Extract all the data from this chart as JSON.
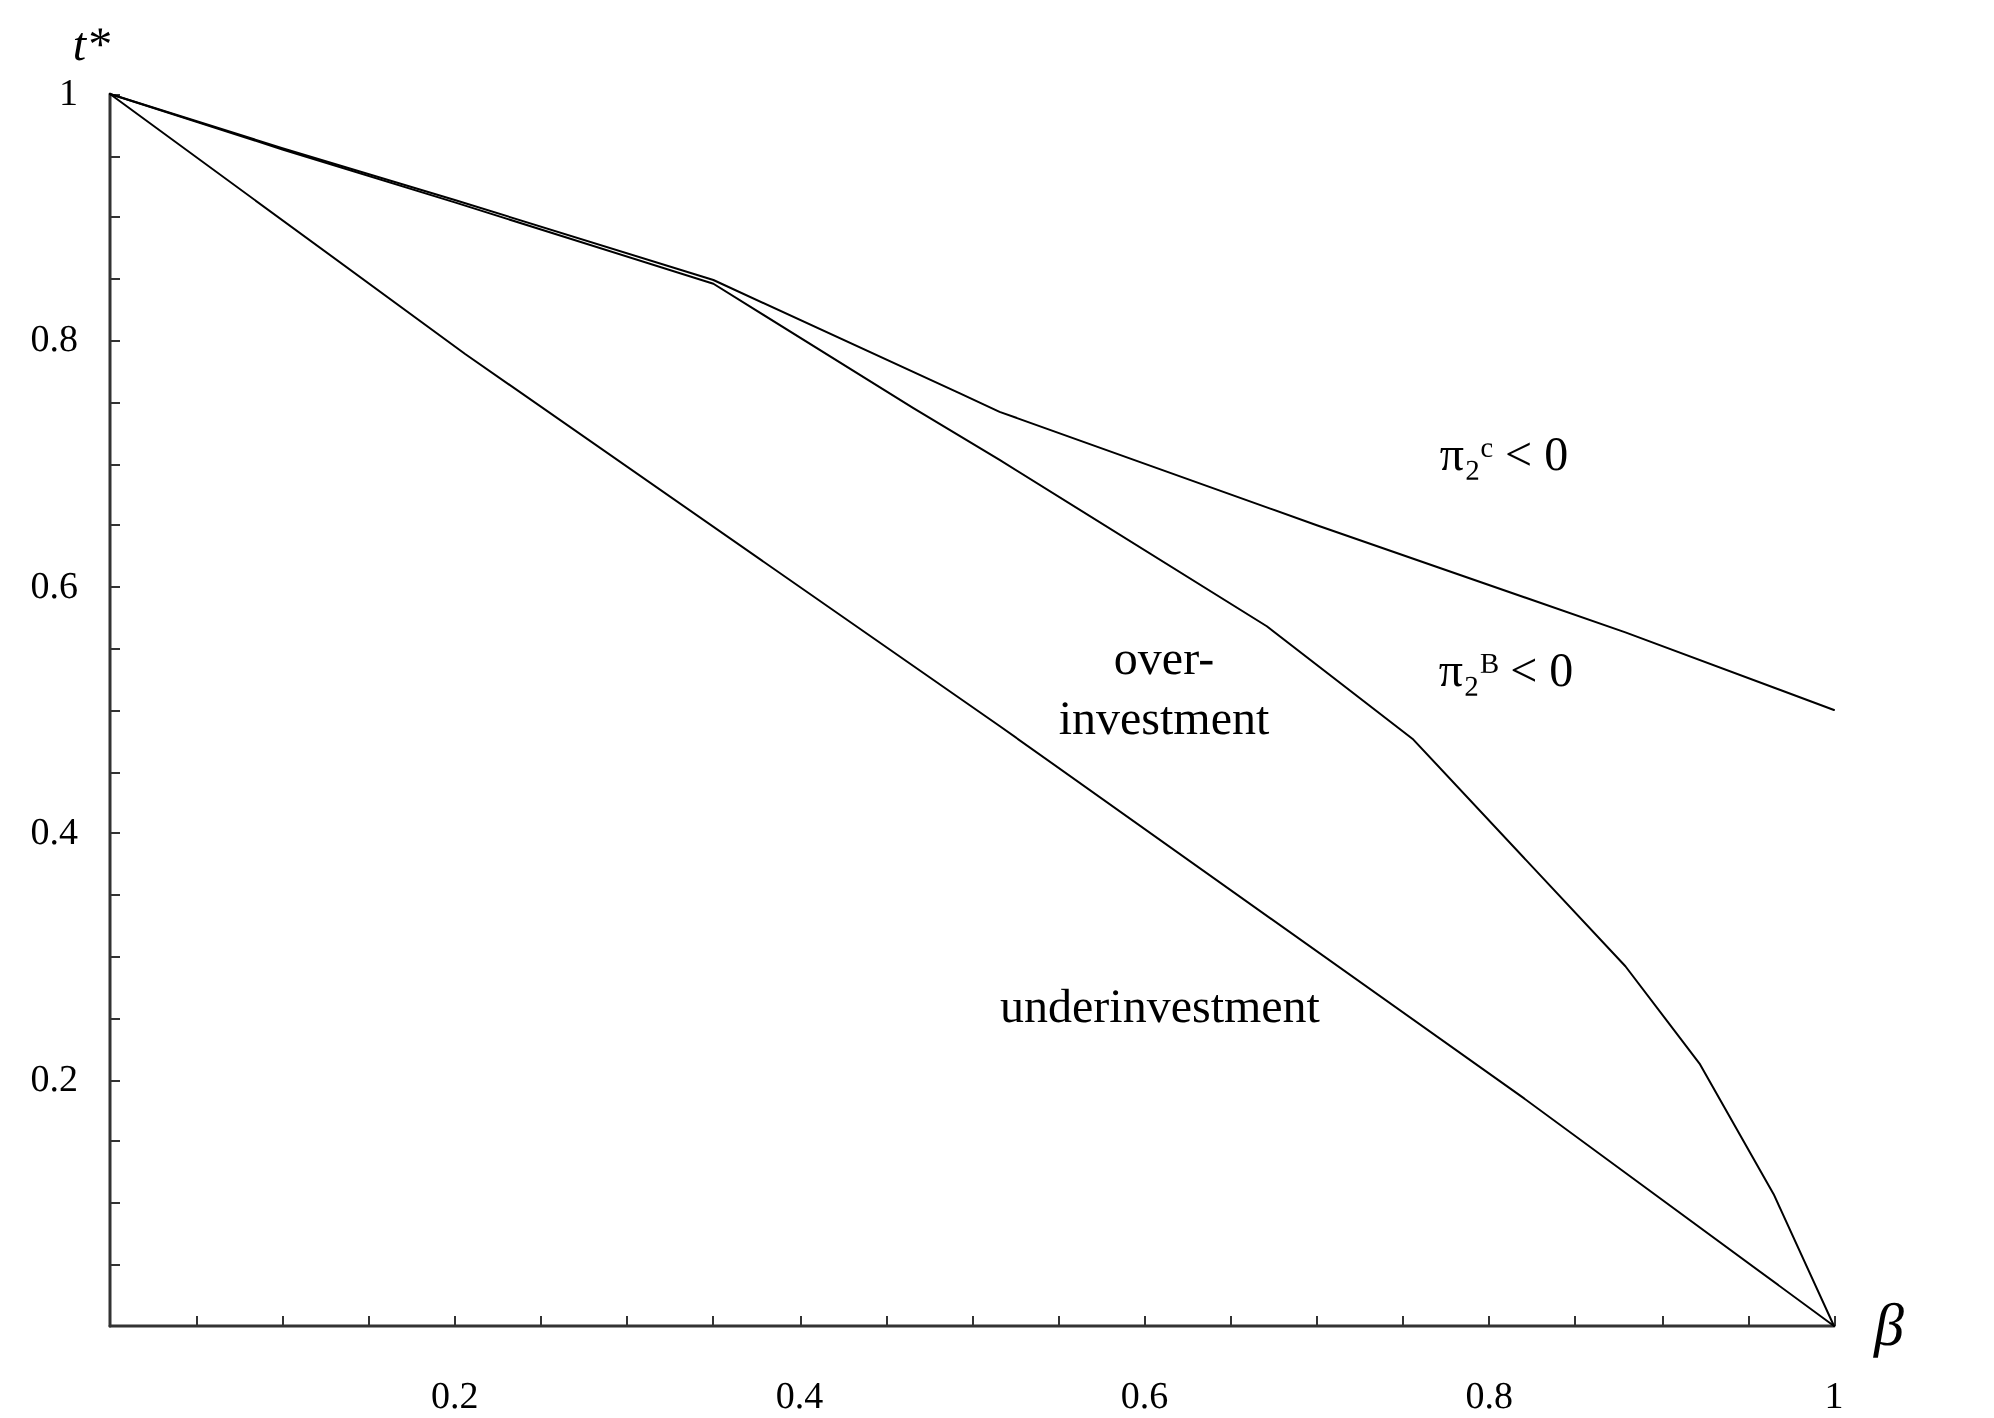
{
  "chart_data": {
    "type": "line",
    "xlabel": "β",
    "ylabel": "t*",
    "xlim": [
      0,
      1
    ],
    "ylim": [
      0,
      1
    ],
    "xticks": [
      {
        "value": 0.05,
        "label": null
      },
      {
        "value": 0.1,
        "label": null
      },
      {
        "value": 0.15,
        "label": null
      },
      0.2,
      {
        "value": 0.25,
        "label": null
      },
      {
        "value": 0.3,
        "label": null
      },
      {
        "value": 0.35,
        "label": null
      },
      0.4,
      {
        "value": 0.45,
        "label": null
      },
      {
        "value": 0.5,
        "label": null
      },
      {
        "value": 0.55,
        "label": null
      },
      0.6,
      {
        "value": 0.65,
        "label": null
      },
      {
        "value": 0.7,
        "label": null
      },
      {
        "value": 0.75,
        "label": null
      },
      0.8,
      {
        "value": 0.85,
        "label": null
      },
      {
        "value": 0.9,
        "label": null
      },
      {
        "value": 0.95,
        "label": null
      },
      1
    ],
    "yticks": [
      {
        "value": 0.05,
        "label": null
      },
      {
        "value": 0.1,
        "label": null
      },
      {
        "value": 0.15,
        "label": null
      },
      0.2,
      {
        "value": 0.25,
        "label": null
      },
      {
        "value": 0.3,
        "label": null
      },
      {
        "value": 0.35,
        "label": null
      },
      0.4,
      {
        "value": 0.45,
        "label": null
      },
      {
        "value": 0.5,
        "label": null
      },
      {
        "value": 0.55,
        "label": null
      },
      0.6,
      {
        "value": 0.65,
        "label": null
      },
      {
        "value": 0.7,
        "label": null
      },
      {
        "value": 0.75,
        "label": null
      },
      0.8,
      {
        "value": 0.85,
        "label": null
      },
      {
        "value": 0.9,
        "label": null
      },
      {
        "value": 0.95,
        "label": null
      },
      1
    ],
    "marker": "none",
    "line_style": "solid",
    "series": [
      {
        "color": "#000000",
        "x": [
          0,
          0.1,
          0.2,
          0.35,
          0.493,
          0.516,
          0.7,
          0.879,
          1
        ],
        "values": [
          1,
          0.956,
          0.914,
          0.849,
          0.757,
          0.742,
          0.65,
          0.563,
          0.5
        ]
      },
      {
        "color": "#000000",
        "x": [
          0,
          0.1,
          0.2,
          0.35,
          0.466,
          0.516,
          0.671,
          0.756,
          0.879,
          0.922,
          0.965,
          1
        ],
        "values": [
          1,
          0.955,
          0.912,
          0.846,
          0.745,
          0.703,
          0.568,
          0.476,
          0.292,
          0.213,
          0.107,
          0
        ]
      },
      {
        "color": "#000000",
        "x": [
          0,
          0.206,
          0.516,
          0.818,
          1
        ],
        "values": [
          1,
          0.789,
          0.487,
          0.187,
          0
        ]
      }
    ],
    "annotations": [
      "π₂ᶜ < 0",
      "π₂ᴮ < 0",
      "over-\ninvestment",
      "underinvestment"
    ]
  }
}
